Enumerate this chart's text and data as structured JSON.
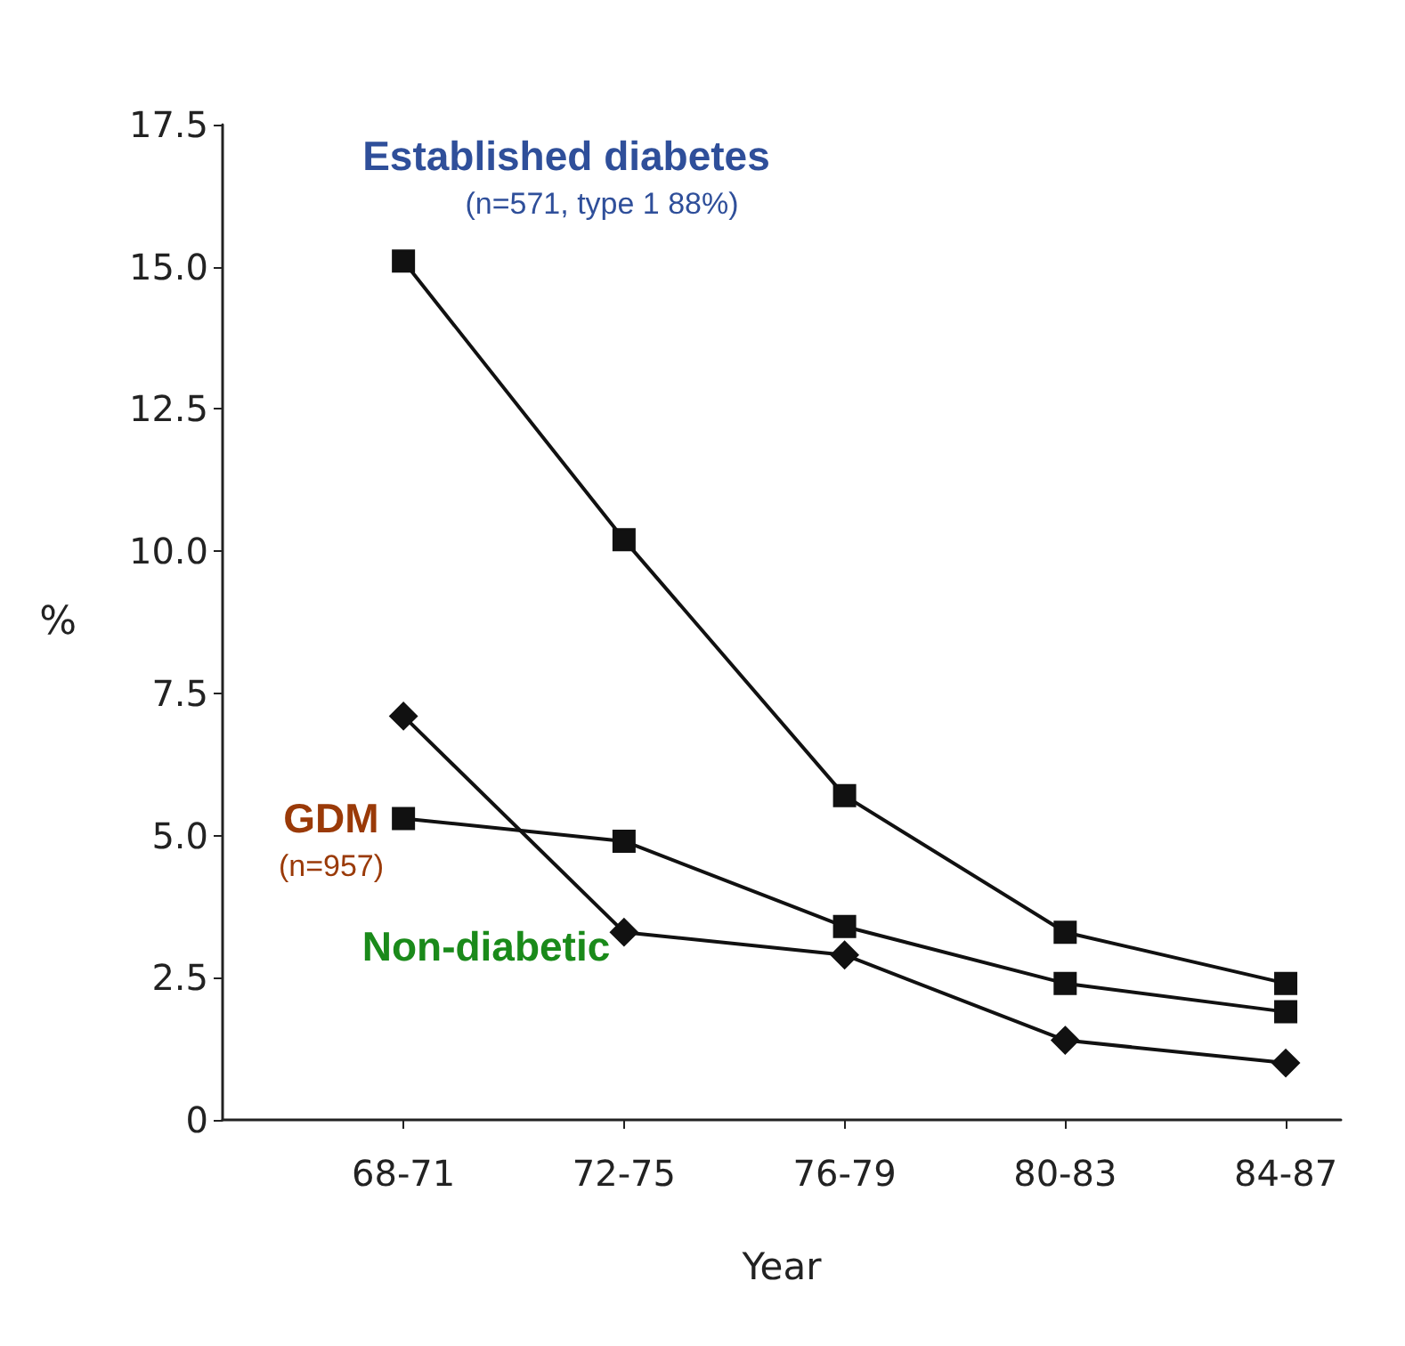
{
  "chart_data": {
    "type": "line",
    "xlabel": "Year",
    "ylabel": "%",
    "categories": [
      "68-71",
      "72-75",
      "76-79",
      "80-83",
      "84-87"
    ],
    "series": [
      {
        "name": "Established diabetes",
        "color": "#111111",
        "marker": "square",
        "values": [
          15.1,
          10.2,
          5.7,
          3.3,
          2.4
        ]
      },
      {
        "name": "GDM",
        "color": "#111111",
        "marker": "square",
        "values": [
          5.3,
          4.9,
          3.4,
          2.4,
          1.9
        ]
      },
      {
        "name": "Non-diabetic",
        "color": "#111111",
        "marker": "diamond",
        "values": [
          7.1,
          3.3,
          2.9,
          1.4,
          1.0
        ]
      }
    ],
    "annotations": [
      "(n=571, type 1 88%)",
      "(n=957)"
    ],
    "ylim": [
      0,
      17.5
    ],
    "yticks": [
      0,
      {
        "value": 2.5,
        "label": "2.5"
      },
      {
        "value": 5,
        "label": "5.0"
      },
      {
        "value": 7.5,
        "label": "7.5"
      },
      {
        "value": 10,
        "label": "10.0"
      },
      {
        "value": 12.5,
        "label": "12.5"
      },
      {
        "value": 15,
        "label": "15.0"
      },
      {
        "value": 17.5,
        "label": "17.5"
      }
    ],
    "grid": false,
    "legend": false,
    "line_style": "solid"
  }
}
